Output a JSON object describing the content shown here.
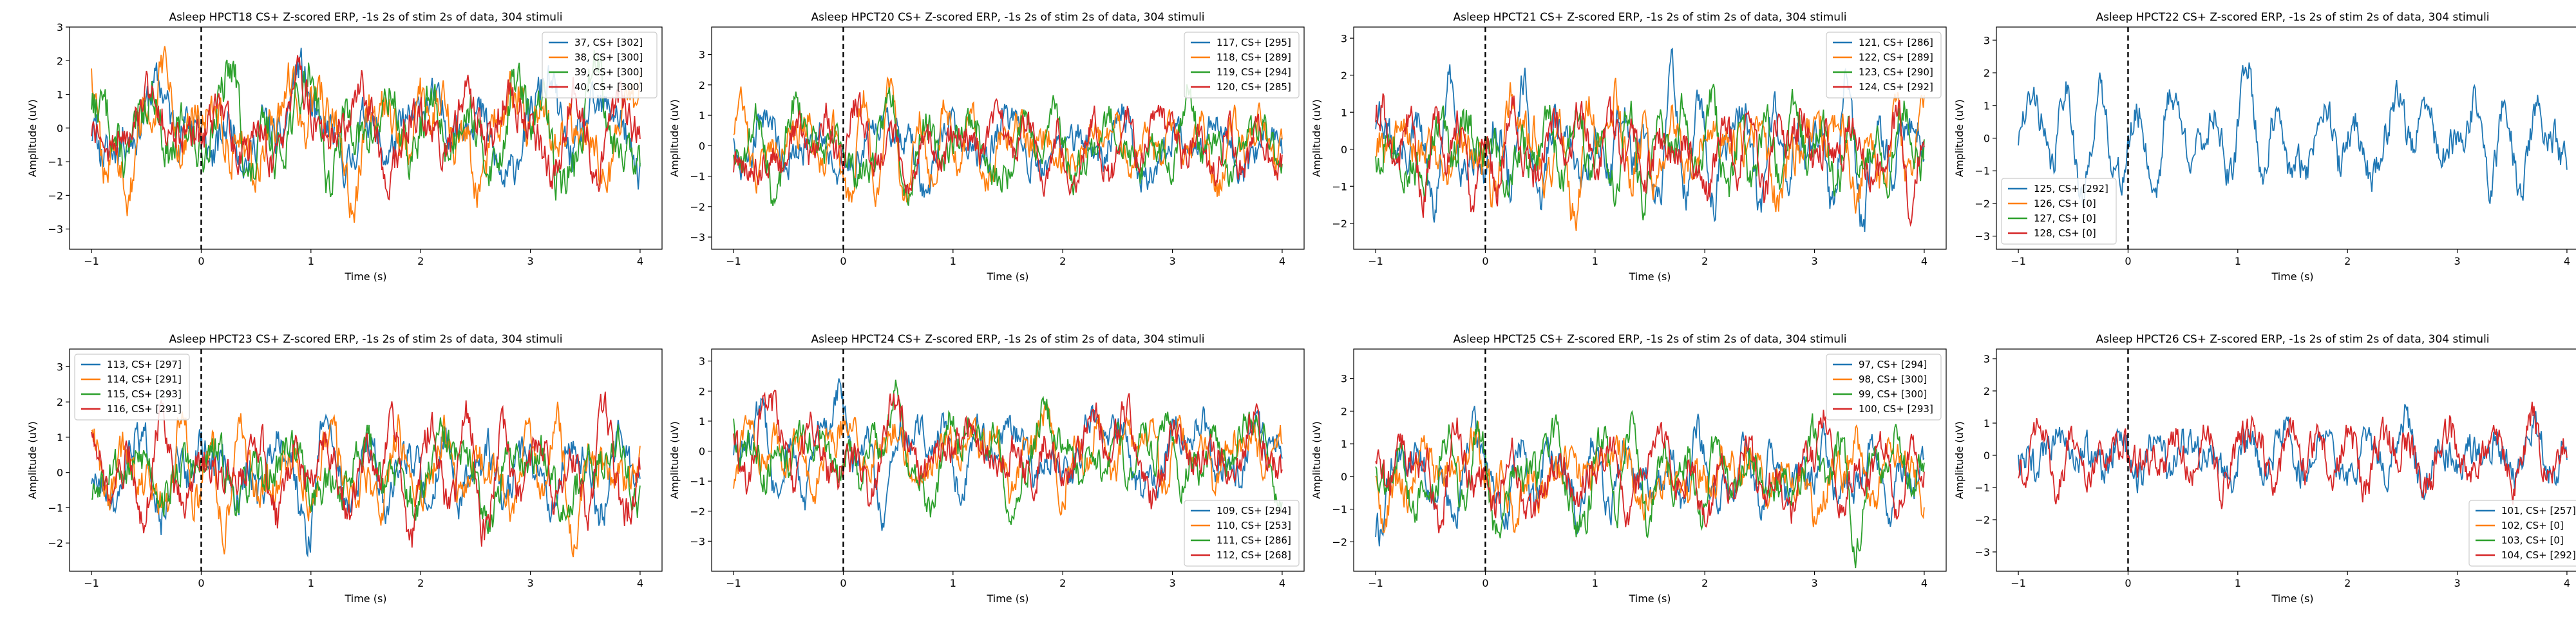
{
  "colors": {
    "blue": "#1f77b4",
    "orange": "#ff7f0e",
    "green": "#2ca02c",
    "red": "#d62728",
    "stim_line": "#000000"
  },
  "chart_data": [
    {
      "type": "line",
      "title": "Asleep HPCT18 CS+ Z-scored ERP, -1s 2s of stim 2s of data, 304 stimuli",
      "xlabel": "Time (s)",
      "ylabel": "Amplitude (uV)",
      "xlim": [
        -1.2,
        4.2
      ],
      "ylim": [
        -3.6,
        3.0
      ],
      "xticks": [
        -1,
        0,
        1,
        2,
        3,
        4
      ],
      "yticks": [
        -3,
        -2,
        -1,
        0,
        1,
        2,
        3
      ],
      "stim_marker_x": 0,
      "legend_position": "top-right",
      "series": [
        {
          "name": "37, CS+ [302]",
          "color": "#1f77b4",
          "amplitude": 1.1,
          "seed": 11
        },
        {
          "name": "38, CS+ [300]",
          "color": "#ff7f0e",
          "amplitude": 1.2,
          "seed": 12
        },
        {
          "name": "39, CS+ [300]",
          "color": "#2ca02c",
          "amplitude": 1.2,
          "seed": 13
        },
        {
          "name": "40, CS+ [300]",
          "color": "#d62728",
          "amplitude": 1.1,
          "seed": 14
        }
      ]
    },
    {
      "type": "line",
      "title": "Asleep HPCT20 CS+ Z-scored ERP, -1s 2s of stim 2s of data, 304 stimuli",
      "xlabel": "Time (s)",
      "ylabel": "Amplitude (uV)",
      "xlim": [
        -1.2,
        4.2
      ],
      "ylim": [
        -3.4,
        3.9
      ],
      "xticks": [
        -1,
        0,
        1,
        2,
        3,
        4
      ],
      "yticks": [
        -3,
        -2,
        -1,
        0,
        1,
        2,
        3
      ],
      "stim_marker_x": 0,
      "legend_position": "top-right",
      "series": [
        {
          "name": "117, CS+ [295]",
          "color": "#1f77b4",
          "amplitude": 1.0,
          "seed": 21
        },
        {
          "name": "118, CS+ [289]",
          "color": "#ff7f0e",
          "amplitude": 1.0,
          "seed": 22
        },
        {
          "name": "119, CS+ [294]",
          "color": "#2ca02c",
          "amplitude": 1.0,
          "seed": 23
        },
        {
          "name": "120, CS+ [285]",
          "color": "#d62728",
          "amplitude": 1.0,
          "seed": 24
        }
      ]
    },
    {
      "type": "line",
      "title": "Asleep HPCT21 CS+ Z-scored ERP, -1s 2s of stim 2s of data, 304 stimuli",
      "xlabel": "Time (s)",
      "ylabel": "Amplitude (uV)",
      "xlim": [
        -1.2,
        4.2
      ],
      "ylim": [
        -2.7,
        3.3
      ],
      "xticks": [
        -1,
        0,
        1,
        2,
        3,
        4
      ],
      "yticks": [
        -2,
        -1,
        0,
        1,
        2,
        3
      ],
      "stim_marker_x": 0,
      "legend_position": "top-right",
      "series": [
        {
          "name": "121, CS+ [286]",
          "color": "#1f77b4",
          "amplitude": 1.0,
          "seed": 31
        },
        {
          "name": "122, CS+ [289]",
          "color": "#ff7f0e",
          "amplitude": 1.0,
          "seed": 32
        },
        {
          "name": "123, CS+ [290]",
          "color": "#2ca02c",
          "amplitude": 1.0,
          "seed": 33
        },
        {
          "name": "124, CS+ [292]",
          "color": "#d62728",
          "amplitude": 1.0,
          "seed": 34
        }
      ]
    },
    {
      "type": "line",
      "title": "Asleep HPCT22 CS+ Z-scored ERP, -1s 2s of stim 2s of data, 304 stimuli",
      "xlabel": "Time (s)",
      "ylabel": "Amplitude (uV)",
      "xlim": [
        -1.2,
        4.2
      ],
      "ylim": [
        -3.4,
        3.4
      ],
      "xticks": [
        -1,
        0,
        1,
        2,
        3,
        4
      ],
      "yticks": [
        -3,
        -2,
        -1,
        0,
        1,
        2,
        3
      ],
      "stim_marker_x": 0,
      "legend_position": "bottom-left",
      "series": [
        {
          "name": "125, CS+ [292]",
          "color": "#1f77b4",
          "amplitude": 1.0,
          "seed": 41
        },
        {
          "name": "126, CS+ [0]",
          "color": "#ff7f0e",
          "amplitude": 0,
          "seed": 42
        },
        {
          "name": "127, CS+ [0]",
          "color": "#2ca02c",
          "amplitude": 0,
          "seed": 43
        },
        {
          "name": "128, CS+ [0]",
          "color": "#d62728",
          "amplitude": 0,
          "seed": 44
        }
      ]
    },
    {
      "type": "line",
      "title": "Asleep HPCT23 CS+ Z-scored ERP, -1s 2s of stim 2s of data, 304 stimuli",
      "xlabel": "Time (s)",
      "ylabel": "Amplitude (uV)",
      "xlim": [
        -1.2,
        4.2
      ],
      "ylim": [
        -2.8,
        3.5
      ],
      "xticks": [
        -1,
        0,
        1,
        2,
        3,
        4
      ],
      "yticks": [
        -2,
        -1,
        0,
        1,
        2,
        3
      ],
      "stim_marker_x": 0,
      "legend_position": "top-left",
      "series": [
        {
          "name": "113, CS+ [297]",
          "color": "#1f77b4",
          "amplitude": 1.0,
          "seed": 51
        },
        {
          "name": "114, CS+ [291]",
          "color": "#ff7f0e",
          "amplitude": 1.0,
          "seed": 52
        },
        {
          "name": "115, CS+ [293]",
          "color": "#2ca02c",
          "amplitude": 1.0,
          "seed": 53
        },
        {
          "name": "116, CS+ [291]",
          "color": "#d62728",
          "amplitude": 1.0,
          "seed": 54
        }
      ]
    },
    {
      "type": "line",
      "title": "Asleep HPCT24 CS+ Z-scored ERP, -1s 2s of stim 2s of data, 304 stimuli",
      "xlabel": "Time (s)",
      "ylabel": "Amplitude (uV)",
      "xlim": [
        -1.2,
        4.2
      ],
      "ylim": [
        -4.0,
        3.4
      ],
      "xticks": [
        -1,
        0,
        1,
        2,
        3,
        4
      ],
      "yticks": [
        -3,
        -2,
        -1,
        0,
        1,
        2,
        3
      ],
      "stim_marker_x": 0,
      "legend_position": "bottom-right",
      "series": [
        {
          "name": "109, CS+ [294]",
          "color": "#1f77b4",
          "amplitude": 1.0,
          "seed": 61
        },
        {
          "name": "110, CS+ [253]",
          "color": "#ff7f0e",
          "amplitude": 1.0,
          "seed": 62
        },
        {
          "name": "111, CS+ [286]",
          "color": "#2ca02c",
          "amplitude": 1.0,
          "seed": 63
        },
        {
          "name": "112, CS+ [268]",
          "color": "#d62728",
          "amplitude": 1.1,
          "seed": 64
        }
      ]
    },
    {
      "type": "line",
      "title": "Asleep HPCT25 CS+ Z-scored ERP, -1s 2s of stim 2s of data, 304 stimuli",
      "xlabel": "Time (s)",
      "ylabel": "Amplitude (uV)",
      "xlim": [
        -1.2,
        4.2
      ],
      "ylim": [
        -2.9,
        3.9
      ],
      "xticks": [
        -1,
        0,
        1,
        2,
        3,
        4
      ],
      "yticks": [
        -2,
        -1,
        0,
        1,
        2,
        3
      ],
      "stim_marker_x": 0,
      "legend_position": "top-right",
      "series": [
        {
          "name": "97, CS+ [294]",
          "color": "#1f77b4",
          "amplitude": 1.0,
          "seed": 71
        },
        {
          "name": "98, CS+ [300]",
          "color": "#ff7f0e",
          "amplitude": 1.0,
          "seed": 72
        },
        {
          "name": "99, CS+ [300]",
          "color": "#2ca02c",
          "amplitude": 1.0,
          "seed": 73
        },
        {
          "name": "100, CS+ [293]",
          "color": "#d62728",
          "amplitude": 1.0,
          "seed": 74
        }
      ]
    },
    {
      "type": "line",
      "title": "Asleep HPCT26 CS+ Z-scored ERP, -1s 2s of stim 2s of data, 304 stimuli",
      "xlabel": "Time (s)",
      "ylabel": "Amplitude (uV)",
      "xlim": [
        -1.2,
        4.2
      ],
      "ylim": [
        -3.6,
        3.3
      ],
      "xticks": [
        -1,
        0,
        1,
        2,
        3,
        4
      ],
      "yticks": [
        -3,
        -2,
        -1,
        0,
        1,
        2,
        3
      ],
      "stim_marker_x": 0,
      "legend_position": "bottom-right",
      "series": [
        {
          "name": "101, CS+ [257]",
          "color": "#1f77b4",
          "amplitude": 1.0,
          "seed": 81
        },
        {
          "name": "102, CS+ [0]",
          "color": "#ff7f0e",
          "amplitude": 0,
          "seed": 82
        },
        {
          "name": "103, CS+ [0]",
          "color": "#2ca02c",
          "amplitude": 0,
          "seed": 83
        },
        {
          "name": "104, CS+ [292]",
          "color": "#d62728",
          "amplitude": 1.0,
          "seed": 84
        }
      ]
    }
  ]
}
